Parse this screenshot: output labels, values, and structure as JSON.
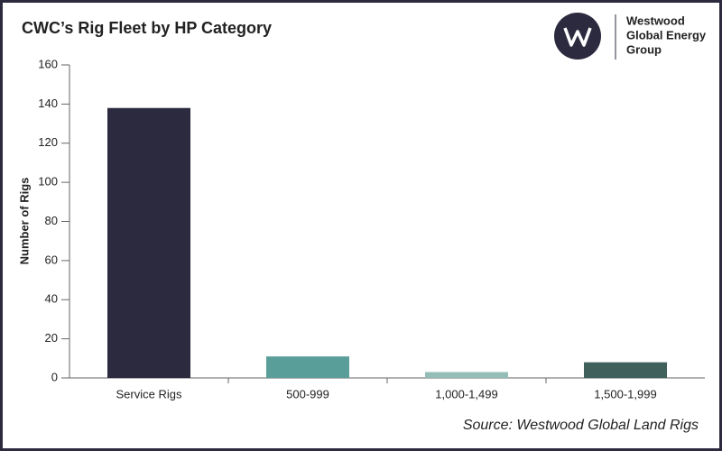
{
  "chart_data": {
    "type": "bar",
    "title": "CWC’s Rig Fleet by HP Category",
    "ylabel": "Number of Rigs",
    "categories": [
      "Service Rigs",
      "500-999",
      "1,000-1,499",
      "1,500-1,999"
    ],
    "values": [
      138,
      11,
      3,
      8
    ],
    "colors": [
      "#2b2a3f",
      "#5a9e99",
      "#94bdb8",
      "#3f605b"
    ],
    "ylim": [
      0,
      160
    ],
    "yticks": [
      0,
      20,
      40,
      60,
      80,
      100,
      120,
      140,
      160
    ],
    "source": "Source: Westwood Global Land Rigs",
    "logo": {
      "lines": [
        "Westwood",
        "Global Energy",
        "Group"
      ]
    }
  }
}
